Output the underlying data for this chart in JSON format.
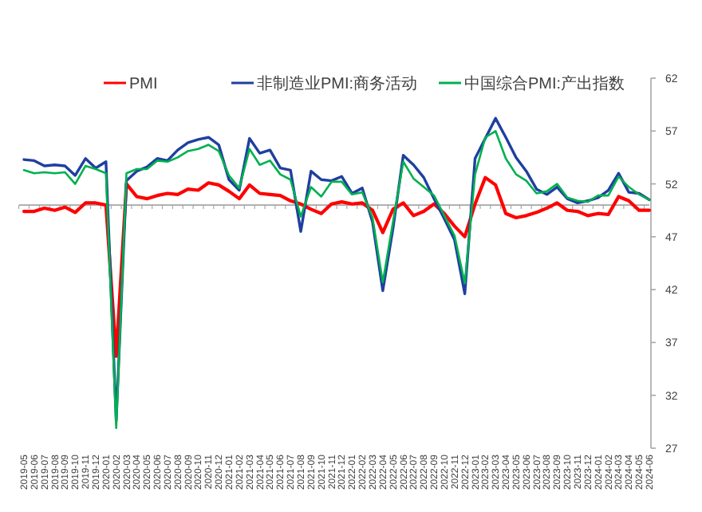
{
  "chart_data": {
    "type": "line",
    "categories": [
      "2019-05",
      "2019-06",
      "2019-07",
      "2019-08",
      "2019-09",
      "2019-10",
      "2019-11",
      "2019-12",
      "2020-01",
      "2020-02",
      "2020-03",
      "2020-04",
      "2020-05",
      "2020-06",
      "2020-07",
      "2020-08",
      "2020-09",
      "2020-10",
      "2020-11",
      "2020-12",
      "2021-01",
      "2021-02",
      "2021-03",
      "2021-04",
      "2021-05",
      "2021-06",
      "2021-07",
      "2021-08",
      "2021-09",
      "2021-10",
      "2021-11",
      "2021-12",
      "2022-01",
      "2022-02",
      "2022-03",
      "2022-04",
      "2022-05",
      "2022-06",
      "2022-07",
      "2022-08",
      "2022-09",
      "2022-10",
      "2022-11",
      "2022-12",
      "2023-01",
      "2023-02",
      "2023-03",
      "2023-04",
      "2023-05",
      "2023-06",
      "2023-07",
      "2023-08",
      "2023-09",
      "2023-10",
      "2023-11",
      "2023-12",
      "2024-01",
      "2024-02",
      "2024-03",
      "2024-04",
      "2024-05",
      "2024-06"
    ],
    "series": [
      {
        "name": "PMI",
        "color": "#ff0000",
        "values": [
          49.4,
          49.4,
          49.7,
          49.5,
          49.8,
          49.3,
          50.2,
          50.2,
          50.0,
          35.7,
          52.0,
          50.8,
          50.6,
          50.9,
          51.1,
          51.0,
          51.5,
          51.4,
          52.1,
          51.9,
          51.3,
          50.6,
          51.9,
          51.1,
          51.0,
          50.9,
          50.4,
          50.1,
          49.6,
          49.2,
          50.1,
          50.3,
          50.1,
          50.2,
          49.5,
          47.4,
          49.6,
          50.2,
          49.0,
          49.4,
          50.1,
          49.2,
          48.0,
          47.0,
          50.1,
          52.6,
          51.9,
          49.2,
          48.8,
          49.0,
          49.3,
          49.7,
          50.2,
          49.5,
          49.4,
          49.0,
          49.2,
          49.1,
          50.8,
          50.4,
          49.5,
          49.5
        ]
      },
      {
        "name": "非制造业PMI:商务活动",
        "color": "#1f3f9f",
        "values": [
          54.3,
          54.2,
          53.7,
          53.8,
          53.7,
          52.8,
          54.4,
          53.5,
          54.1,
          29.6,
          52.3,
          53.2,
          53.6,
          54.4,
          54.2,
          55.2,
          55.9,
          56.2,
          56.4,
          55.7,
          52.4,
          51.4,
          56.3,
          54.9,
          55.2,
          53.5,
          53.3,
          47.5,
          53.2,
          52.4,
          52.3,
          52.7,
          51.1,
          51.6,
          48.4,
          41.9,
          47.8,
          54.7,
          53.8,
          52.6,
          50.6,
          48.7,
          46.7,
          41.6,
          54.4,
          56.3,
          58.2,
          56.4,
          54.5,
          53.2,
          51.5,
          51.0,
          51.7,
          50.6,
          50.2,
          50.4,
          50.7,
          51.4,
          53.0,
          51.2,
          51.1,
          50.5
        ]
      },
      {
        "name": "中国综合PMI:产出指数",
        "color": "#00b050",
        "values": [
          53.3,
          53.0,
          53.1,
          53.0,
          53.1,
          52.0,
          53.7,
          53.4,
          53.0,
          28.9,
          53.0,
          53.4,
          53.4,
          54.2,
          54.1,
          54.5,
          55.1,
          55.3,
          55.7,
          55.1,
          52.8,
          51.6,
          55.3,
          53.8,
          54.2,
          52.9,
          52.4,
          48.9,
          51.7,
          50.8,
          52.2,
          52.2,
          51.0,
          51.2,
          48.8,
          42.7,
          48.4,
          54.1,
          52.5,
          51.7,
          50.9,
          49.0,
          47.1,
          42.6,
          52.9,
          56.4,
          57.0,
          54.4,
          52.9,
          52.3,
          51.1,
          51.3,
          52.0,
          50.7,
          50.4,
          50.3,
          50.9,
          50.9,
          52.7,
          51.7,
          51.0,
          50.5
        ]
      }
    ],
    "ylim": [
      27,
      62
    ],
    "yticks": [
      27,
      32,
      37,
      42,
      47,
      52,
      57,
      62
    ],
    "ref_lines": [
      {
        "axis": "y",
        "value": 50,
        "color": "#a6a6a6"
      }
    ],
    "legend": "top",
    "grid": false,
    "marker": "none",
    "line_style": "solid"
  }
}
